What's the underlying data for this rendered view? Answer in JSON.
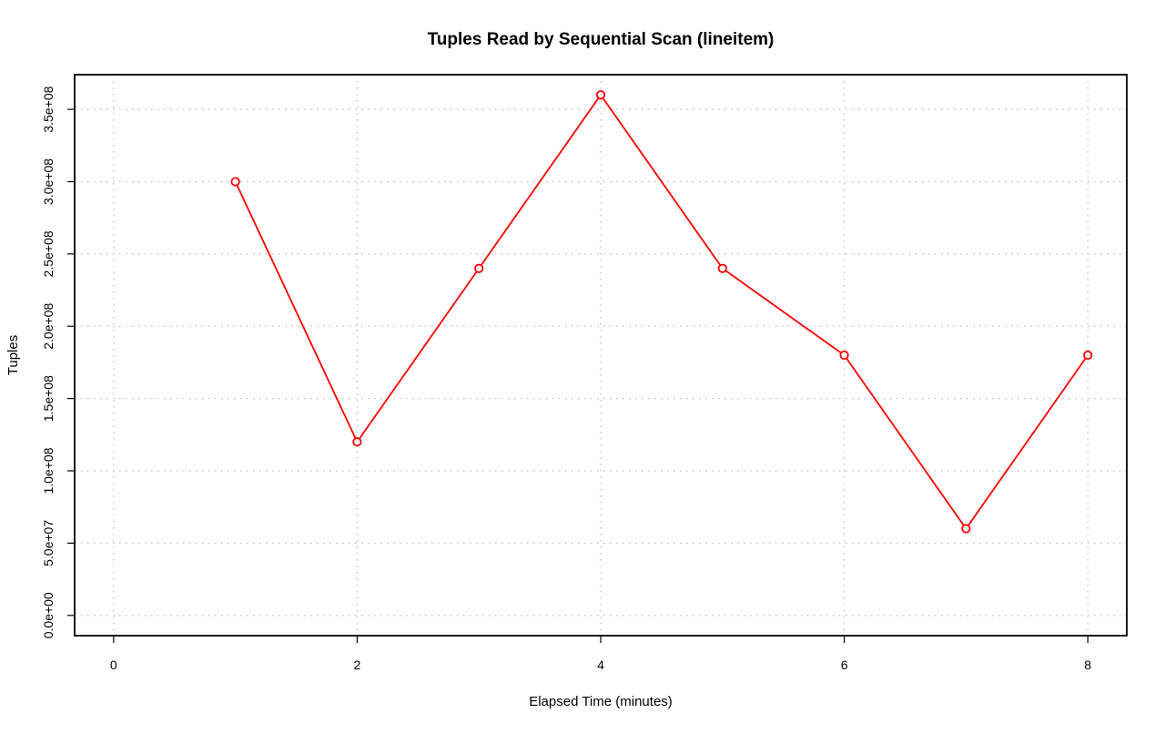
{
  "chart_data": {
    "type": "line",
    "title": "Tuples Read by Sequential Scan (lineitem)",
    "xlabel": "Elapsed Time (minutes)",
    "ylabel": "Tuples",
    "xlim": [
      -0.32,
      8.32
    ],
    "ylim": [
      -14000000,
      374000000
    ],
    "x_ticks": [
      0,
      2,
      4,
      6,
      8
    ],
    "x_tick_labels": [
      "0",
      "2",
      "4",
      "6",
      "8"
    ],
    "y_ticks": [
      0,
      50000000,
      100000000,
      150000000,
      200000000,
      250000000,
      300000000,
      350000000
    ],
    "y_tick_labels": [
      "0.0e+00",
      "5.0e+07",
      "1.0e+08",
      "1.5e+08",
      "2.0e+08",
      "2.5e+08",
      "3.0e+08",
      "3.5e+08"
    ],
    "grid": true,
    "series": [
      {
        "color": "#ff0000",
        "x": [
          1,
          2,
          3,
          4,
          5,
          6,
          7,
          8
        ],
        "values": [
          300000000,
          120000000,
          240000000,
          360000000,
          240000000,
          180000000,
          60000000,
          180000000
        ]
      }
    ]
  }
}
